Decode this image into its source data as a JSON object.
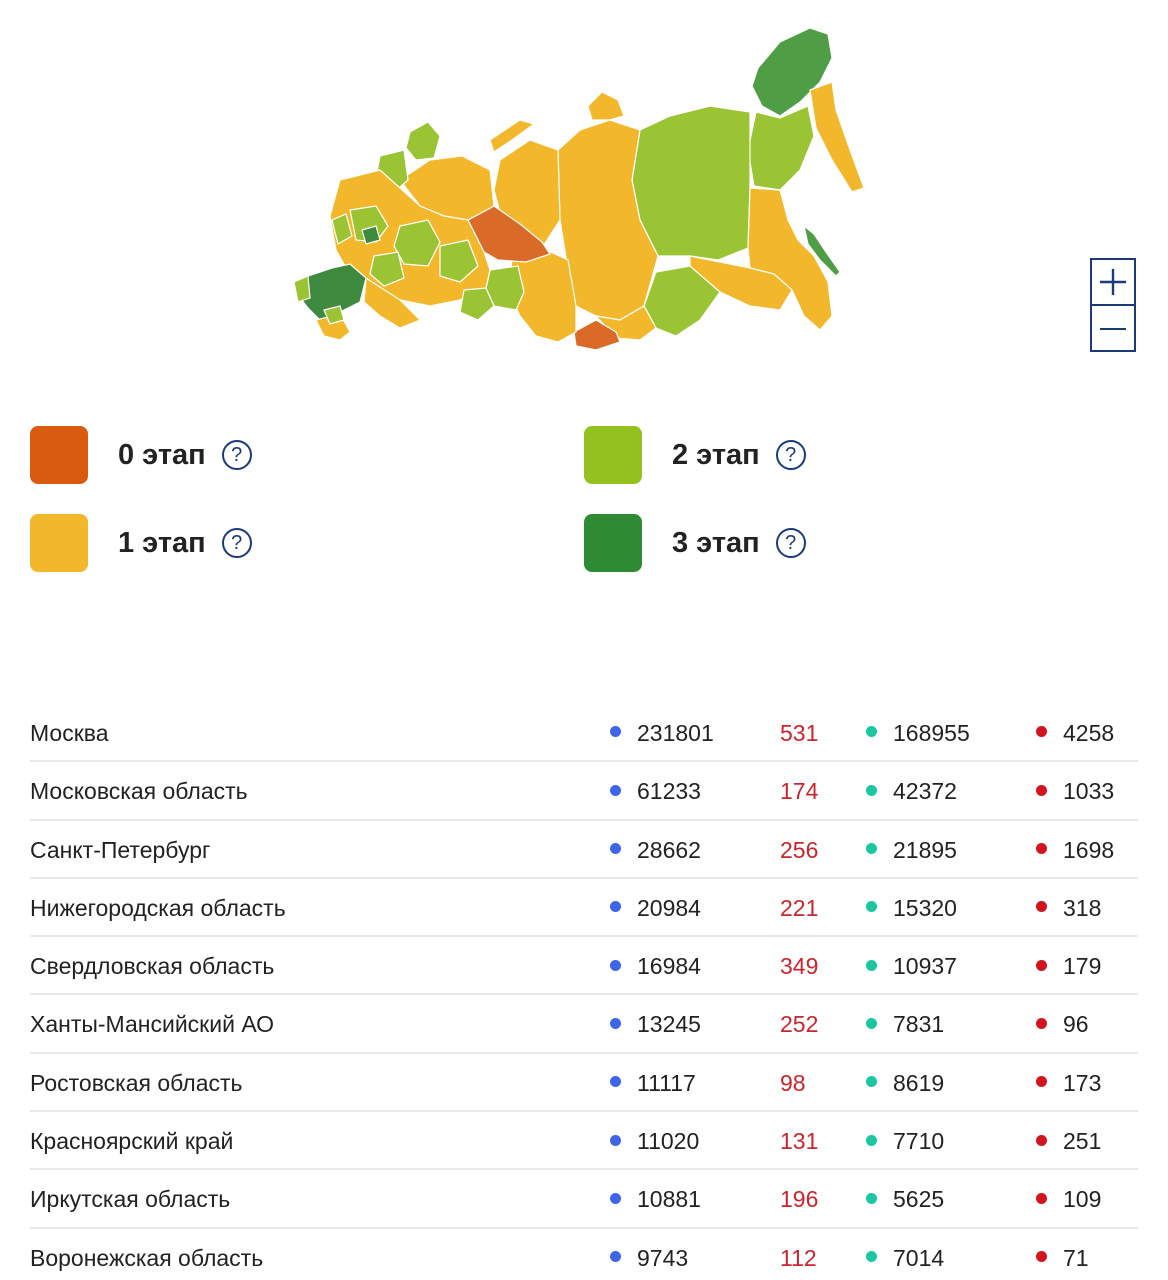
{
  "colors": {
    "stage0": "#d95b0f",
    "stage1": "#f2b72a",
    "stage2": "#94c11f",
    "stage3": "#2f8a34",
    "accent": "#1b3a7a",
    "new_cases": "#c8252d",
    "dot_cases": "#3e64e8",
    "dot_recovered": "#1dc6a2",
    "dot_deaths": "#d2141f"
  },
  "map": {
    "zoom_in_icon": "plus-icon",
    "zoom_out_icon": "minus-icon"
  },
  "legend": [
    {
      "label": "0 этап",
      "color_key": "stage0",
      "help_icon": "question-circle-icon"
    },
    {
      "label": "1 этап",
      "color_key": "stage1",
      "help_icon": "question-circle-icon"
    },
    {
      "label": "2 этап",
      "color_key": "stage2",
      "help_icon": "question-circle-icon"
    },
    {
      "label": "3 этап",
      "color_key": "stage3",
      "help_icon": "question-circle-icon"
    }
  ],
  "help_symbol": "?",
  "regions": [
    {
      "name": "Москва",
      "cases": "231801",
      "new": "531",
      "recovered": "168955",
      "deaths": "4258"
    },
    {
      "name": "Московская область",
      "cases": "61233",
      "new": "174",
      "recovered": "42372",
      "deaths": "1033"
    },
    {
      "name": "Санкт-Петербург",
      "cases": "28662",
      "new": "256",
      "recovered": "21895",
      "deaths": "1698"
    },
    {
      "name": "Нижегородская область",
      "cases": "20984",
      "new": "221",
      "recovered": "15320",
      "deaths": "318"
    },
    {
      "name": "Свердловская область",
      "cases": "16984",
      "new": "349",
      "recovered": "10937",
      "deaths": "179"
    },
    {
      "name": "Ханты-Мансийский АО",
      "cases": "13245",
      "new": "252",
      "recovered": "7831",
      "deaths": "96"
    },
    {
      "name": "Ростовская область",
      "cases": "11117",
      "new": "98",
      "recovered": "8619",
      "deaths": "173"
    },
    {
      "name": "Красноярский край",
      "cases": "11020",
      "new": "131",
      "recovered": "7710",
      "deaths": "251"
    },
    {
      "name": "Иркутская область",
      "cases": "10881",
      "new": "196",
      "recovered": "5625",
      "deaths": "109"
    },
    {
      "name": "Воронежская область",
      "cases": "9743",
      "new": "112",
      "recovered": "7014",
      "deaths": "71"
    }
  ]
}
